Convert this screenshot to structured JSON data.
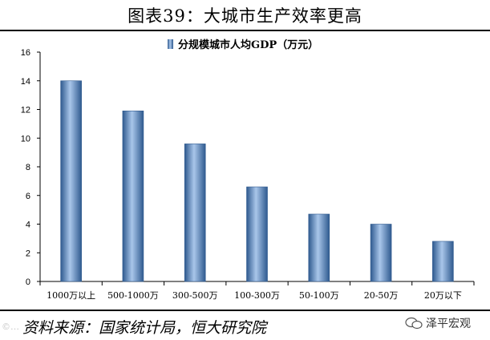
{
  "header": {
    "title": "图表39：大城市生产效率更高"
  },
  "footer": {
    "source": "资料来源：国家统计局，恒大研究院",
    "brand": "泽平宏观",
    "watermark": "©…"
  },
  "colors": {
    "bar_light": "#a9c6ea",
    "bar_mid": "#4f81bd",
    "bar_dark": "#2f5a8f"
  },
  "chart_data": {
    "type": "bar",
    "title": "",
    "categories": [
      "1000万以上",
      "500-1000万",
      "300-500万",
      "100-300万",
      "50-100万",
      "20-50万",
      "20万以下"
    ],
    "series": [
      {
        "name": "分规模城市人均GDP（万元）",
        "values": [
          14.0,
          11.9,
          9.6,
          6.6,
          4.7,
          4.0,
          2.8
        ]
      }
    ],
    "ylim": [
      0,
      16
    ],
    "yticks": [
      0,
      2,
      4,
      6,
      8,
      10,
      12,
      14,
      16
    ],
    "xlabel": "",
    "ylabel": "",
    "legend_position": "top-center",
    "grid": false
  }
}
